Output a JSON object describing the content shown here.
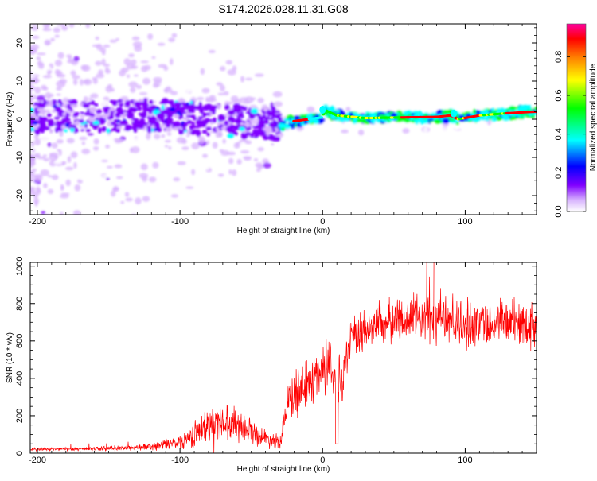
{
  "chart_data": [
    {
      "type": "heatmap",
      "title": "S174.2026.028.11.31.G08",
      "xlabel": "Height of straight line (km)",
      "ylabel": "Frequency (Hz)",
      "xlim": [
        -205,
        150
      ],
      "ylim": [
        -25,
        25
      ],
      "xticks": [
        -200,
        -100,
        0,
        100
      ],
      "yticks": [
        20,
        10,
        0,
        -10,
        -20
      ],
      "colorbar": {
        "label": "Normalized spectral amplitude",
        "range": [
          0,
          0.97
        ],
        "ticks": [
          0.0,
          0.2,
          0.4,
          0.6,
          0.8
        ],
        "colormap": [
          "#ffffff",
          "#d8b4fe",
          "#8000ff",
          "#0000ff",
          "#00ffff",
          "#00ff00",
          "#ffff00",
          "#ff8000",
          "#ff0000",
          "#ff00a0"
        ]
      },
      "ridge": {
        "x": [
          -200,
          -170,
          -140,
          -120,
          -100,
          -80,
          -60,
          -40,
          -30,
          -20,
          -10,
          0,
          1,
          10,
          30,
          60,
          80,
          90,
          95,
          110,
          130,
          150
        ],
        "y": [
          0.5,
          1.0,
          0.8,
          1.2,
          0.5,
          0.0,
          -0.5,
          -1.0,
          -1.5,
          -0.5,
          0.0,
          0.5,
          2.5,
          1.0,
          0.3,
          0.5,
          0.6,
          1.0,
          0.0,
          1.0,
          1.6,
          2.0
        ]
      }
    },
    {
      "type": "line",
      "xlabel": "Height of straight line (km)",
      "ylabel": "SNR (10 * v/v)",
      "xlim": [
        -205,
        150
      ],
      "ylim": [
        0,
        1020
      ],
      "xticks": [
        -200,
        -100,
        0,
        100
      ],
      "yticks": [
        0,
        200,
        400,
        600,
        800,
        1000
      ],
      "series_color": "#ff0000",
      "envelope": {
        "x": [
          -205,
          -150,
          -120,
          -100,
          -90,
          -80,
          -70,
          -60,
          -50,
          -40,
          -30,
          -25,
          -20,
          -15,
          -10,
          -5,
          0,
          5,
          10,
          15,
          20,
          30,
          40,
          50,
          60,
          70,
          80,
          90,
          100,
          110,
          120,
          130,
          140,
          150
        ],
        "mean": [
          20,
          25,
          35,
          60,
          100,
          150,
          170,
          160,
          120,
          80,
          60,
          260,
          300,
          330,
          380,
          420,
          450,
          480,
          400,
          450,
          600,
          650,
          700,
          700,
          730,
          720,
          720,
          720,
          680,
          700,
          700,
          700,
          700,
          680
        ],
        "spread": [
          10,
          12,
          20,
          40,
          70,
          90,
          100,
          90,
          70,
          50,
          40,
          100,
          120,
          130,
          130,
          150,
          150,
          160,
          200,
          150,
          130,
          120,
          120,
          120,
          130,
          130,
          140,
          130,
          130,
          130,
          130,
          130,
          130,
          130
        ]
      }
    }
  ]
}
